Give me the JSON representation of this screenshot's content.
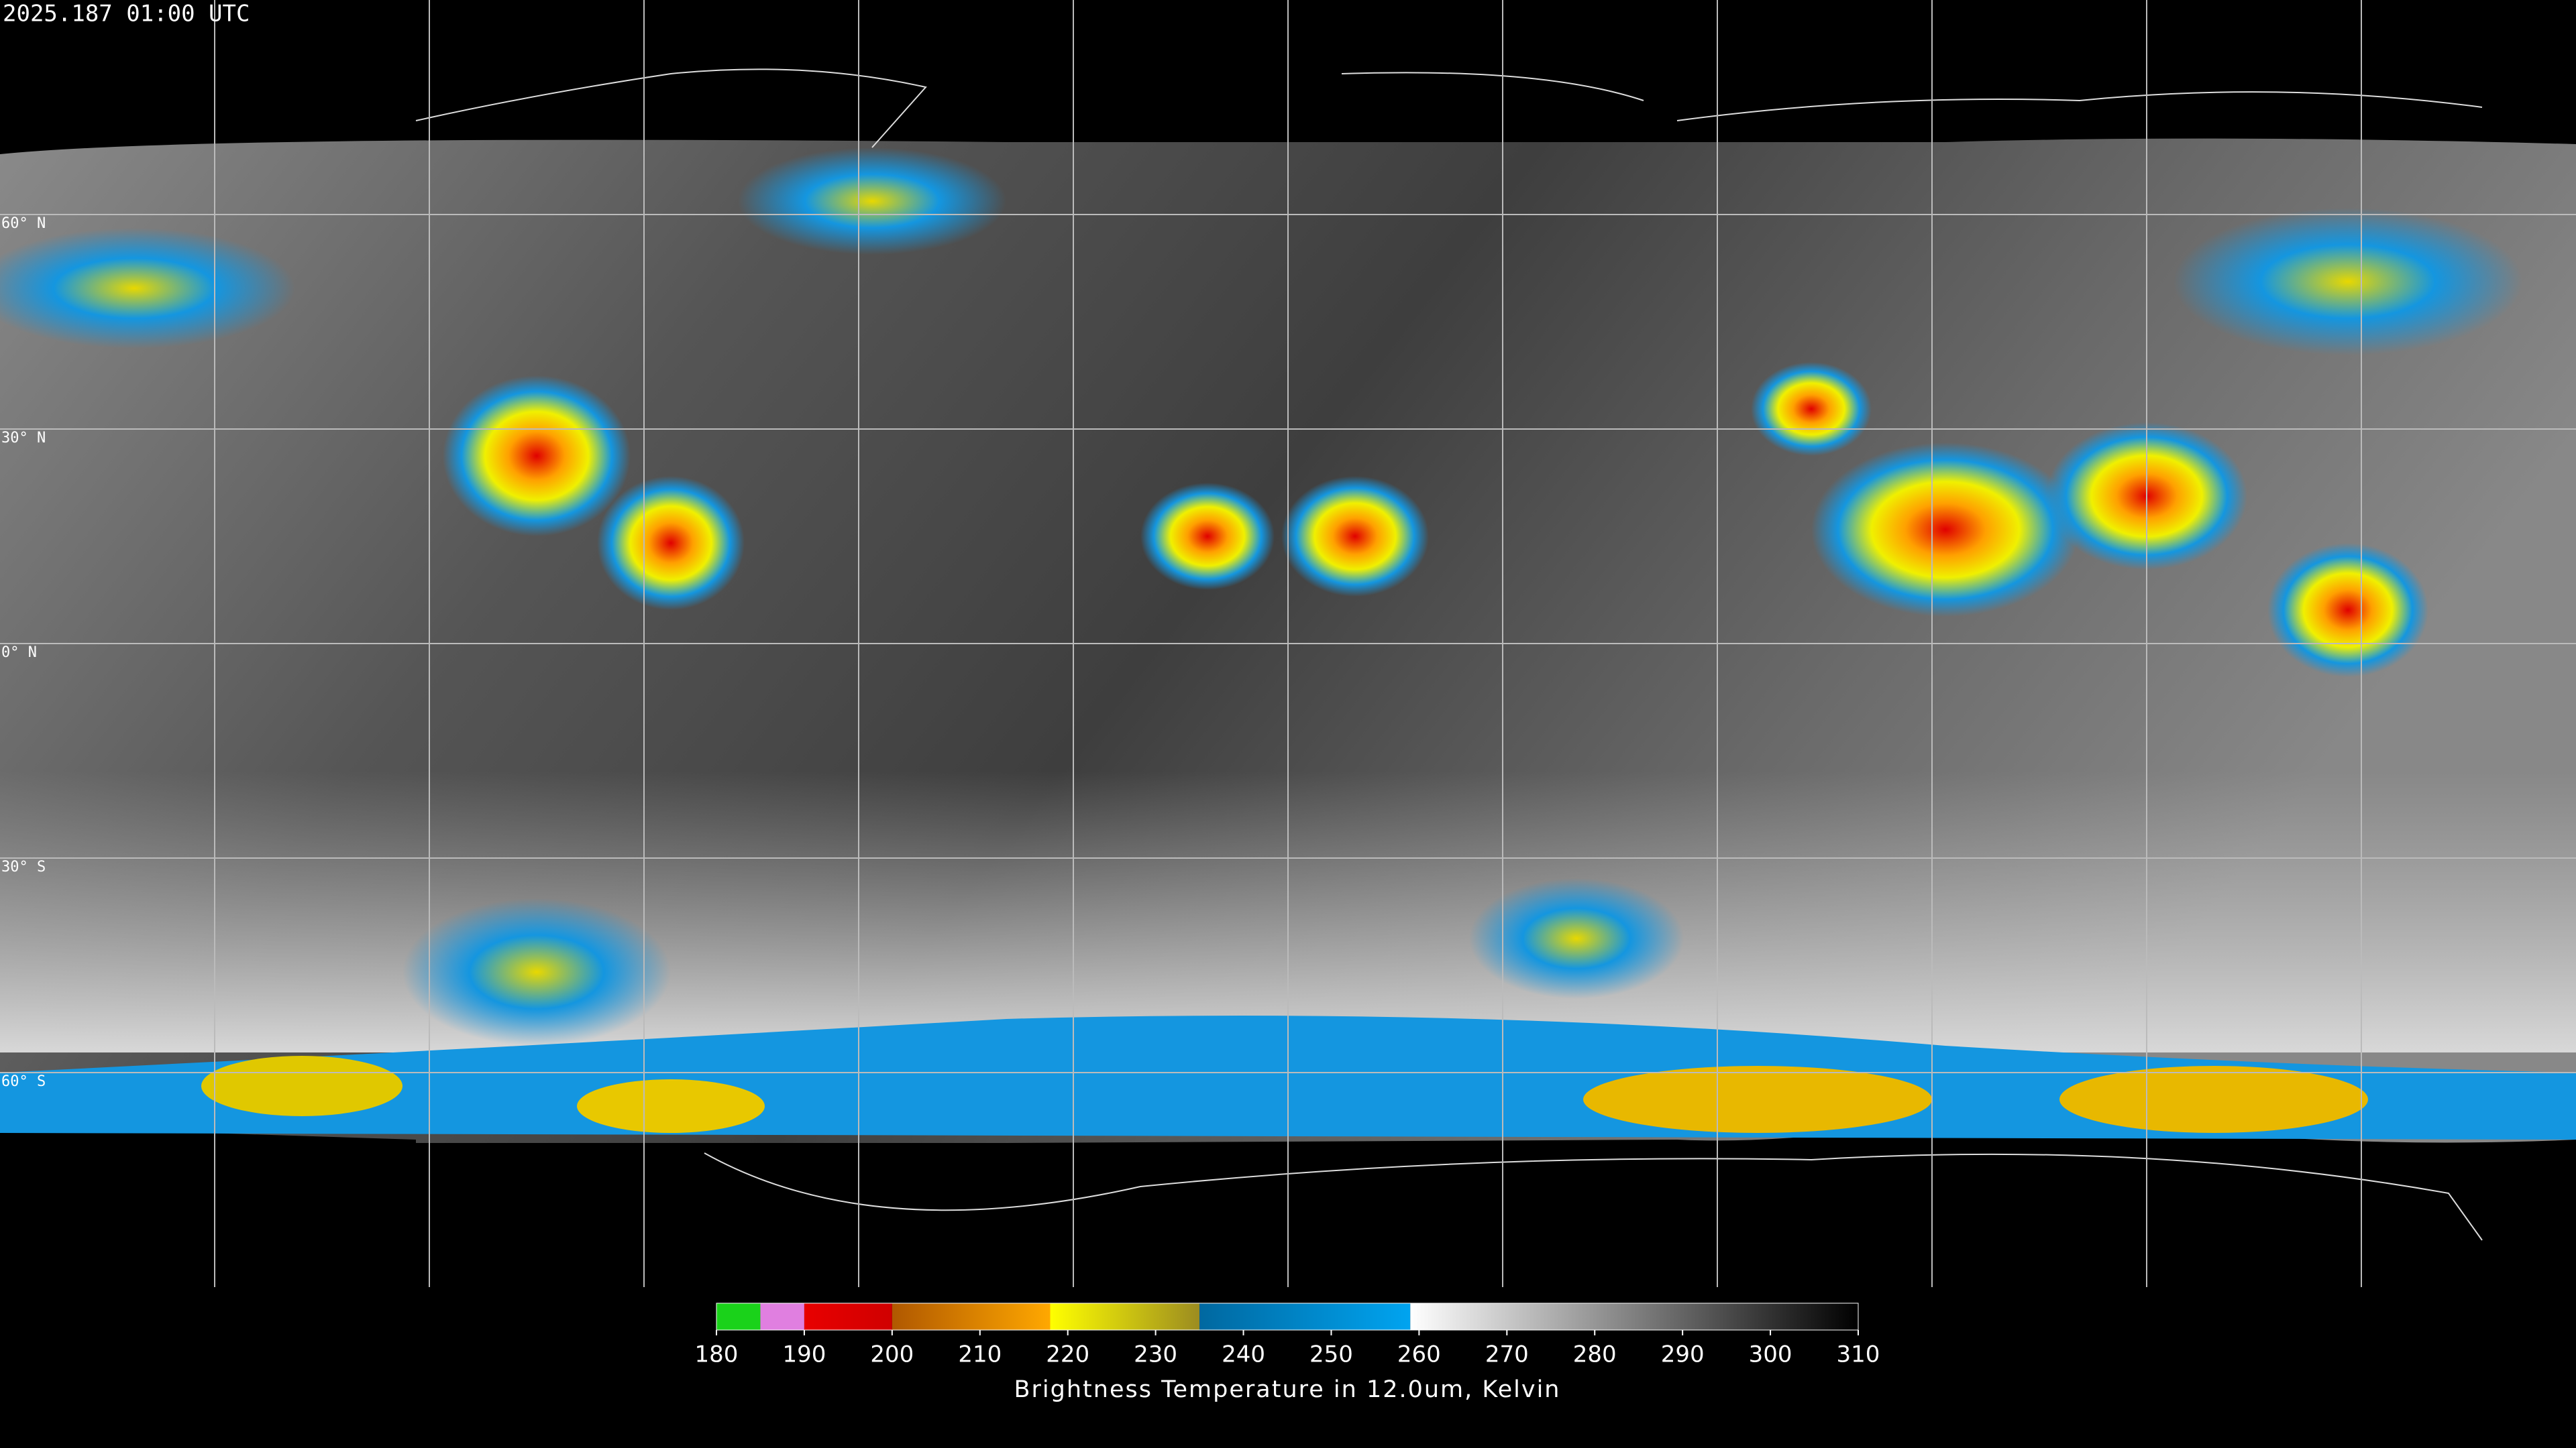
{
  "header": {
    "timestamp": "2025.187 01:00 UTC"
  },
  "map": {
    "lat_lines": [
      {
        "value": 60,
        "label": "60° N"
      },
      {
        "value": 30,
        "label": "30° N"
      },
      {
        "value": 0,
        "label": "0° N"
      },
      {
        "value": -30,
        "label": "30° S"
      },
      {
        "value": -60,
        "label": "60° S"
      }
    ]
  },
  "colorbar": {
    "range": [
      180,
      310
    ],
    "ticks": [
      180,
      190,
      200,
      210,
      220,
      230,
      240,
      250,
      260,
      270,
      280,
      290,
      300,
      310
    ],
    "label": "Brightness Temperature in 12.0um, Kelvin",
    "segments": [
      {
        "range": [
          180,
          185
        ],
        "colors": [
          "#1ad21a",
          "#1ad21a"
        ]
      },
      {
        "range": [
          185,
          190
        ],
        "colors": [
          "#e07fe0",
          "#e07fe0"
        ]
      },
      {
        "range": [
          190,
          200
        ],
        "colors": [
          "#e80000",
          "#d00000"
        ]
      },
      {
        "range": [
          200,
          218
        ],
        "colors": [
          "#b05800",
          "#ffa800"
        ]
      },
      {
        "range": [
          218,
          235
        ],
        "colors": [
          "#ffff00",
          "#9c8c20"
        ]
      },
      {
        "range": [
          235,
          259
        ],
        "colors": [
          "#0068a0",
          "#00a4f0"
        ]
      },
      {
        "range": [
          259,
          310
        ],
        "colors": [
          "#ffffff",
          "#000000"
        ]
      }
    ]
  }
}
